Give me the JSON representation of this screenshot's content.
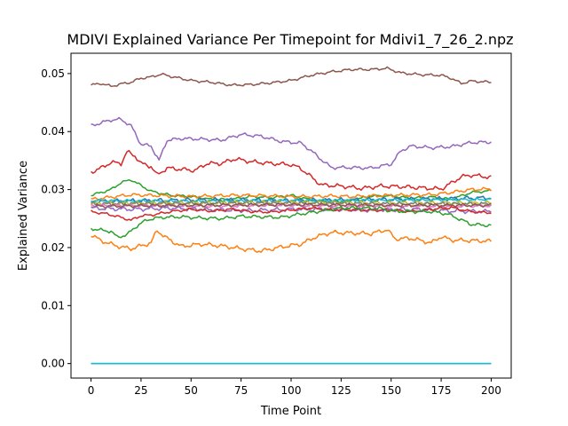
{
  "chart_data": {
    "type": "line",
    "title": "MDIVI Explained Variance Per Timepoint for Mdivi1_7_26_2.npz",
    "xlabel": "Time Point",
    "ylabel": "Explained Variance",
    "xlim": [
      -10,
      210
    ],
    "ylim": [
      -0.0025,
      0.0535
    ],
    "xticks": [
      0,
      25,
      50,
      75,
      100,
      125,
      150,
      175,
      200
    ],
    "yticks": [
      0.0,
      0.01,
      0.02,
      0.03,
      0.04,
      0.05
    ],
    "xtick_labels": [
      "0",
      "25",
      "50",
      "75",
      "100",
      "125",
      "150",
      "175",
      "200"
    ],
    "ytick_labels": [
      "0.00",
      "0.01",
      "0.02",
      "0.03",
      "0.04",
      "0.05"
    ],
    "grid": false,
    "legend": false,
    "series": [
      {
        "color": "#8c564b",
        "anchors": [
          [
            0,
            0.048
          ],
          [
            5,
            0.0483
          ],
          [
            10,
            0.0478
          ],
          [
            15,
            0.0482
          ],
          [
            20,
            0.0485
          ],
          [
            25,
            0.0492
          ],
          [
            30,
            0.0494
          ],
          [
            35,
            0.0499
          ],
          [
            40,
            0.0495
          ],
          [
            50,
            0.0488
          ],
          [
            60,
            0.0485
          ],
          [
            70,
            0.048
          ],
          [
            80,
            0.0481
          ],
          [
            90,
            0.0484
          ],
          [
            100,
            0.0488
          ],
          [
            110,
            0.0497
          ],
          [
            120,
            0.0503
          ],
          [
            130,
            0.0507
          ],
          [
            140,
            0.0507
          ],
          [
            148,
            0.0509
          ],
          [
            155,
            0.0501
          ],
          [
            165,
            0.0498
          ],
          [
            175,
            0.0497
          ],
          [
            180,
            0.0492
          ],
          [
            185,
            0.0483
          ],
          [
            190,
            0.0487
          ],
          [
            200,
            0.0485
          ]
        ]
      },
      {
        "color": "#9467bd",
        "anchors": [
          [
            0,
            0.041
          ],
          [
            5,
            0.0415
          ],
          [
            10,
            0.042
          ],
          [
            15,
            0.0421
          ],
          [
            20,
            0.041
          ],
          [
            25,
            0.0378
          ],
          [
            30,
            0.0375
          ],
          [
            34,
            0.035
          ],
          [
            38,
            0.0385
          ],
          [
            45,
            0.0388
          ],
          [
            55,
            0.0387
          ],
          [
            65,
            0.0385
          ],
          [
            75,
            0.0395
          ],
          [
            85,
            0.0392
          ],
          [
            95,
            0.0383
          ],
          [
            105,
            0.038
          ],
          [
            110,
            0.0367
          ],
          [
            115,
            0.0352
          ],
          [
            120,
            0.0338
          ],
          [
            130,
            0.0338
          ],
          [
            140,
            0.0337
          ],
          [
            150,
            0.0344
          ],
          [
            155,
            0.0367
          ],
          [
            160,
            0.0375
          ],
          [
            170,
            0.0372
          ],
          [
            180,
            0.0374
          ],
          [
            190,
            0.0381
          ],
          [
            200,
            0.0382
          ]
        ]
      },
      {
        "color": "#d62728",
        "anchors": [
          [
            0,
            0.033
          ],
          [
            5,
            0.0337
          ],
          [
            10,
            0.0347
          ],
          [
            15,
            0.0345
          ],
          [
            18,
            0.0365
          ],
          [
            22,
            0.0358
          ],
          [
            25,
            0.0345
          ],
          [
            30,
            0.034
          ],
          [
            33,
            0.0325
          ],
          [
            38,
            0.0337
          ],
          [
            45,
            0.0335
          ],
          [
            52,
            0.0333
          ],
          [
            58,
            0.0345
          ],
          [
            65,
            0.0345
          ],
          [
            72,
            0.0353
          ],
          [
            80,
            0.0348
          ],
          [
            90,
            0.0345
          ],
          [
            100,
            0.0343
          ],
          [
            105,
            0.0336
          ],
          [
            110,
            0.0322
          ],
          [
            115,
            0.0308
          ],
          [
            125,
            0.0306
          ],
          [
            135,
            0.0302
          ],
          [
            145,
            0.0306
          ],
          [
            155,
            0.0305
          ],
          [
            165,
            0.0303
          ],
          [
            175,
            0.0301
          ],
          [
            180,
            0.0311
          ],
          [
            185,
            0.0322
          ],
          [
            190,
            0.0325
          ],
          [
            200,
            0.0321
          ]
        ]
      },
      {
        "color": "#2ca02c",
        "anchors": [
          [
            0,
            0.029
          ],
          [
            5,
            0.0295
          ],
          [
            10,
            0.03
          ],
          [
            15,
            0.0312
          ],
          [
            20,
            0.0317
          ],
          [
            25,
            0.0307
          ],
          [
            30,
            0.0297
          ],
          [
            40,
            0.029
          ],
          [
            50,
            0.0288
          ],
          [
            60,
            0.0283
          ],
          [
            70,
            0.0283
          ],
          [
            80,
            0.0288
          ],
          [
            90,
            0.0286
          ],
          [
            100,
            0.029
          ],
          [
            110,
            0.0282
          ],
          [
            120,
            0.0278
          ],
          [
            130,
            0.0281
          ],
          [
            140,
            0.0289
          ],
          [
            150,
            0.0289
          ],
          [
            160,
            0.0285
          ],
          [
            170,
            0.0287
          ],
          [
            180,
            0.0283
          ],
          [
            190,
            0.0295
          ],
          [
            200,
            0.0298
          ]
        ]
      },
      {
        "color": "#ff7f0e",
        "anchors": [
          [
            0,
            0.0283
          ],
          [
            10,
            0.0287
          ],
          [
            20,
            0.0291
          ],
          [
            30,
            0.029
          ],
          [
            40,
            0.0289
          ],
          [
            50,
            0.0288
          ],
          [
            60,
            0.0289
          ],
          [
            70,
            0.029
          ],
          [
            80,
            0.029
          ],
          [
            90,
            0.0289
          ],
          [
            100,
            0.0288
          ],
          [
            110,
            0.0288
          ],
          [
            120,
            0.0289
          ],
          [
            130,
            0.0288
          ],
          [
            140,
            0.0289
          ],
          [
            150,
            0.029
          ],
          [
            160,
            0.0291
          ],
          [
            170,
            0.0291
          ],
          [
            180,
            0.0295
          ],
          [
            190,
            0.03
          ],
          [
            200,
            0.0301
          ]
        ]
      },
      {
        "color": "#1f77b4",
        "anchors": [
          [
            0,
            0.0279
          ],
          [
            25,
            0.0281
          ],
          [
            50,
            0.0282
          ],
          [
            75,
            0.0282
          ],
          [
            100,
            0.0281
          ],
          [
            125,
            0.0282
          ],
          [
            150,
            0.0283
          ],
          [
            175,
            0.0284
          ],
          [
            200,
            0.0286
          ]
        ]
      },
      {
        "color": "#17becf",
        "anchors": [
          [
            0,
            0.0281
          ],
          [
            50,
            0.028
          ],
          [
            100,
            0.0281
          ],
          [
            150,
            0.0282
          ],
          [
            200,
            0.0283
          ]
        ]
      },
      {
        "color": "#bcbd22",
        "anchors": [
          [
            0,
            0.0276
          ],
          [
            50,
            0.0277
          ],
          [
            100,
            0.0278
          ],
          [
            150,
            0.0277
          ],
          [
            200,
            0.0277
          ]
        ]
      },
      {
        "color": "#7f7f7f",
        "anchors": [
          [
            0,
            0.0275
          ],
          [
            50,
            0.0276
          ],
          [
            100,
            0.0276
          ],
          [
            150,
            0.0275
          ],
          [
            200,
            0.0275
          ]
        ]
      },
      {
        "color": "#e377c2",
        "anchors": [
          [
            0,
            0.0273
          ],
          [
            30,
            0.0272
          ],
          [
            60,
            0.0271
          ],
          [
            90,
            0.0273
          ],
          [
            120,
            0.0272
          ],
          [
            150,
            0.0272
          ],
          [
            180,
            0.0271
          ],
          [
            200,
            0.0272
          ]
        ]
      },
      {
        "color": "#8c564b",
        "anchors": [
          [
            0,
            0.0271
          ],
          [
            50,
            0.0273
          ],
          [
            100,
            0.0274
          ],
          [
            150,
            0.0273
          ],
          [
            200,
            0.0273
          ]
        ]
      },
      {
        "color": "#9467bd",
        "anchors": [
          [
            0,
            0.0268
          ],
          [
            20,
            0.0266
          ],
          [
            40,
            0.0268
          ],
          [
            60,
            0.0265
          ],
          [
            80,
            0.0264
          ],
          [
            100,
            0.0266
          ],
          [
            120,
            0.0266
          ],
          [
            140,
            0.0265
          ],
          [
            160,
            0.0266
          ],
          [
            180,
            0.0263
          ],
          [
            200,
            0.0262
          ]
        ]
      },
      {
        "color": "#d62728",
        "anchors": [
          [
            0,
            0.0262
          ],
          [
            8,
            0.0258
          ],
          [
            15,
            0.0252
          ],
          [
            20,
            0.0247
          ],
          [
            25,
            0.0255
          ],
          [
            30,
            0.0256
          ],
          [
            40,
            0.0262
          ],
          [
            50,
            0.0266
          ],
          [
            60,
            0.0263
          ],
          [
            70,
            0.0266
          ],
          [
            80,
            0.0262
          ],
          [
            90,
            0.0261
          ],
          [
            100,
            0.0265
          ],
          [
            110,
            0.0268
          ],
          [
            120,
            0.0265
          ],
          [
            130,
            0.0265
          ],
          [
            140,
            0.0264
          ],
          [
            150,
            0.0265
          ],
          [
            160,
            0.0262
          ],
          [
            170,
            0.0266
          ],
          [
            180,
            0.0269
          ],
          [
            190,
            0.0262
          ],
          [
            200,
            0.026
          ]
        ]
      },
      {
        "color": "#2ca02c",
        "anchors": [
          [
            0,
            0.0233
          ],
          [
            5,
            0.023
          ],
          [
            10,
            0.0228
          ],
          [
            13,
            0.0218
          ],
          [
            18,
            0.0222
          ],
          [
            22,
            0.0235
          ],
          [
            28,
            0.0248
          ],
          [
            35,
            0.0252
          ],
          [
            45,
            0.0253
          ],
          [
            55,
            0.0251
          ],
          [
            65,
            0.025
          ],
          [
            75,
            0.0254
          ],
          [
            85,
            0.0253
          ],
          [
            95,
            0.0252
          ],
          [
            105,
            0.0258
          ],
          [
            115,
            0.0263
          ],
          [
            125,
            0.0268
          ],
          [
            135,
            0.0268
          ],
          [
            145,
            0.0267
          ],
          [
            150,
            0.0263
          ],
          [
            160,
            0.0262
          ],
          [
            170,
            0.0262
          ],
          [
            178,
            0.0258
          ],
          [
            185,
            0.0248
          ],
          [
            190,
            0.024
          ],
          [
            200,
            0.0238
          ]
        ]
      },
      {
        "color": "#ff7f0e",
        "anchors": [
          [
            0,
            0.0222
          ],
          [
            5,
            0.0212
          ],
          [
            10,
            0.0206
          ],
          [
            15,
            0.0201
          ],
          [
            20,
            0.0198
          ],
          [
            25,
            0.0203
          ],
          [
            30,
            0.0208
          ],
          [
            33,
            0.023
          ],
          [
            37,
            0.0218
          ],
          [
            45,
            0.0202
          ],
          [
            55,
            0.0206
          ],
          [
            65,
            0.0203
          ],
          [
            75,
            0.0198
          ],
          [
            85,
            0.0194
          ],
          [
            95,
            0.0201
          ],
          [
            105,
            0.0206
          ],
          [
            112,
            0.0218
          ],
          [
            120,
            0.0226
          ],
          [
            130,
            0.0225
          ],
          [
            140,
            0.0224
          ],
          [
            148,
            0.0231
          ],
          [
            152,
            0.0215
          ],
          [
            160,
            0.0216
          ],
          [
            170,
            0.0208
          ],
          [
            175,
            0.0219
          ],
          [
            180,
            0.0213
          ],
          [
            190,
            0.0212
          ],
          [
            200,
            0.0211
          ]
        ]
      },
      {
        "color": "#1f77b4",
        "anchors": [
          [
            0,
            0.0
          ],
          [
            200,
            0.0
          ]
        ]
      },
      {
        "color": "#17becf",
        "anchors": [
          [
            0,
            0.0
          ],
          [
            200,
            0.0
          ]
        ]
      }
    ]
  }
}
